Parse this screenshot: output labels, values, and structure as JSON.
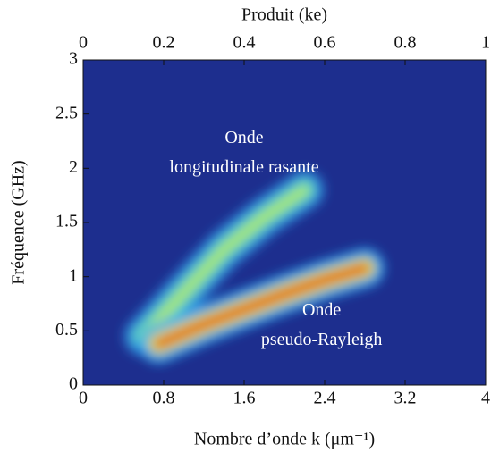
{
  "chart_data": {
    "type": "heatmap",
    "xlabel": "Nombre d’onde k (μm⁻¹)",
    "x2label": "Produit (ke)",
    "ylabel": "Fréquence (GHz)",
    "xlim": [
      0,
      4
    ],
    "xticks": [
      0,
      0.8,
      1.6,
      2.4,
      3.2,
      4
    ],
    "x2lim": [
      0,
      1
    ],
    "x2ticks": [
      0,
      0.2,
      0.4,
      0.6,
      0.8,
      1
    ],
    "ylim": [
      0,
      3
    ],
    "yticks": [
      0,
      0.5,
      1,
      1.5,
      2,
      2.5,
      3
    ],
    "background": "#1d2e8e",
    "ridges": [
      {
        "x": [
          0.6,
          1.0,
          1.4,
          1.8,
          2.2
        ],
        "values": [
          0.45,
          0.85,
          1.25,
          1.55,
          1.8
        ],
        "colors": [
          "#2f8fe0",
          "#5fe0c0",
          "#b8e85a"
        ]
      },
      {
        "x": [
          0.75,
          1.2,
          1.6,
          2.0,
          2.4,
          2.8
        ],
        "values": [
          0.38,
          0.56,
          0.7,
          0.84,
          0.97,
          1.08
        ],
        "colors": [
          "#2fa8f0",
          "#e8e040",
          "#e83a10"
        ]
      }
    ],
    "annotations": [
      [
        "Onde",
        "longitudinale rasante"
      ],
      [
        "Onde",
        "pseudo-Rayleigh"
      ]
    ]
  }
}
